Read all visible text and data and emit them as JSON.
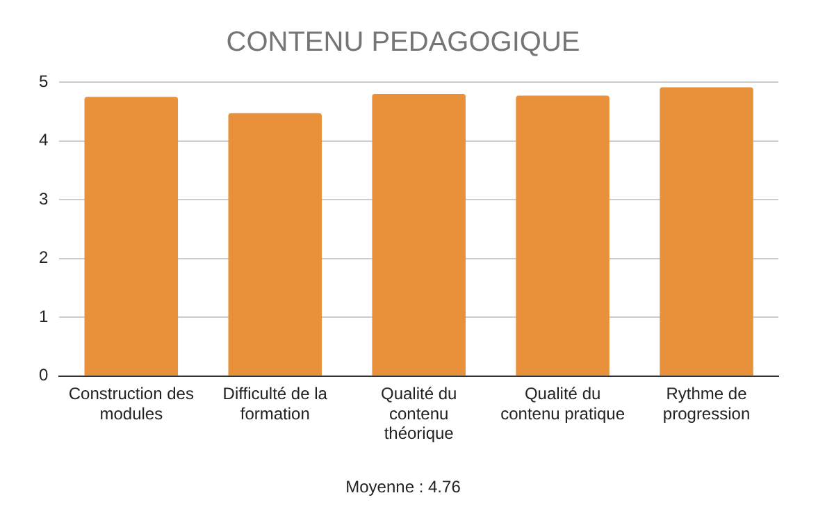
{
  "chart_data": {
    "type": "bar",
    "title": "CONTENU PEDAGOGIQUE",
    "categories": [
      "Construction des modules",
      "Difficulté de la formation",
      "Qualité du contenu théorique",
      "Qualité du contenu pratique",
      "Rythme de progression"
    ],
    "values": [
      4.75,
      4.47,
      4.8,
      4.77,
      4.91
    ],
    "color": "#e8913a",
    "ylim": [
      0,
      5
    ],
    "yticks": [
      0,
      1,
      2,
      3,
      4,
      5
    ],
    "grid": "y",
    "annotations": [
      "Moyenne : 4.76"
    ]
  }
}
